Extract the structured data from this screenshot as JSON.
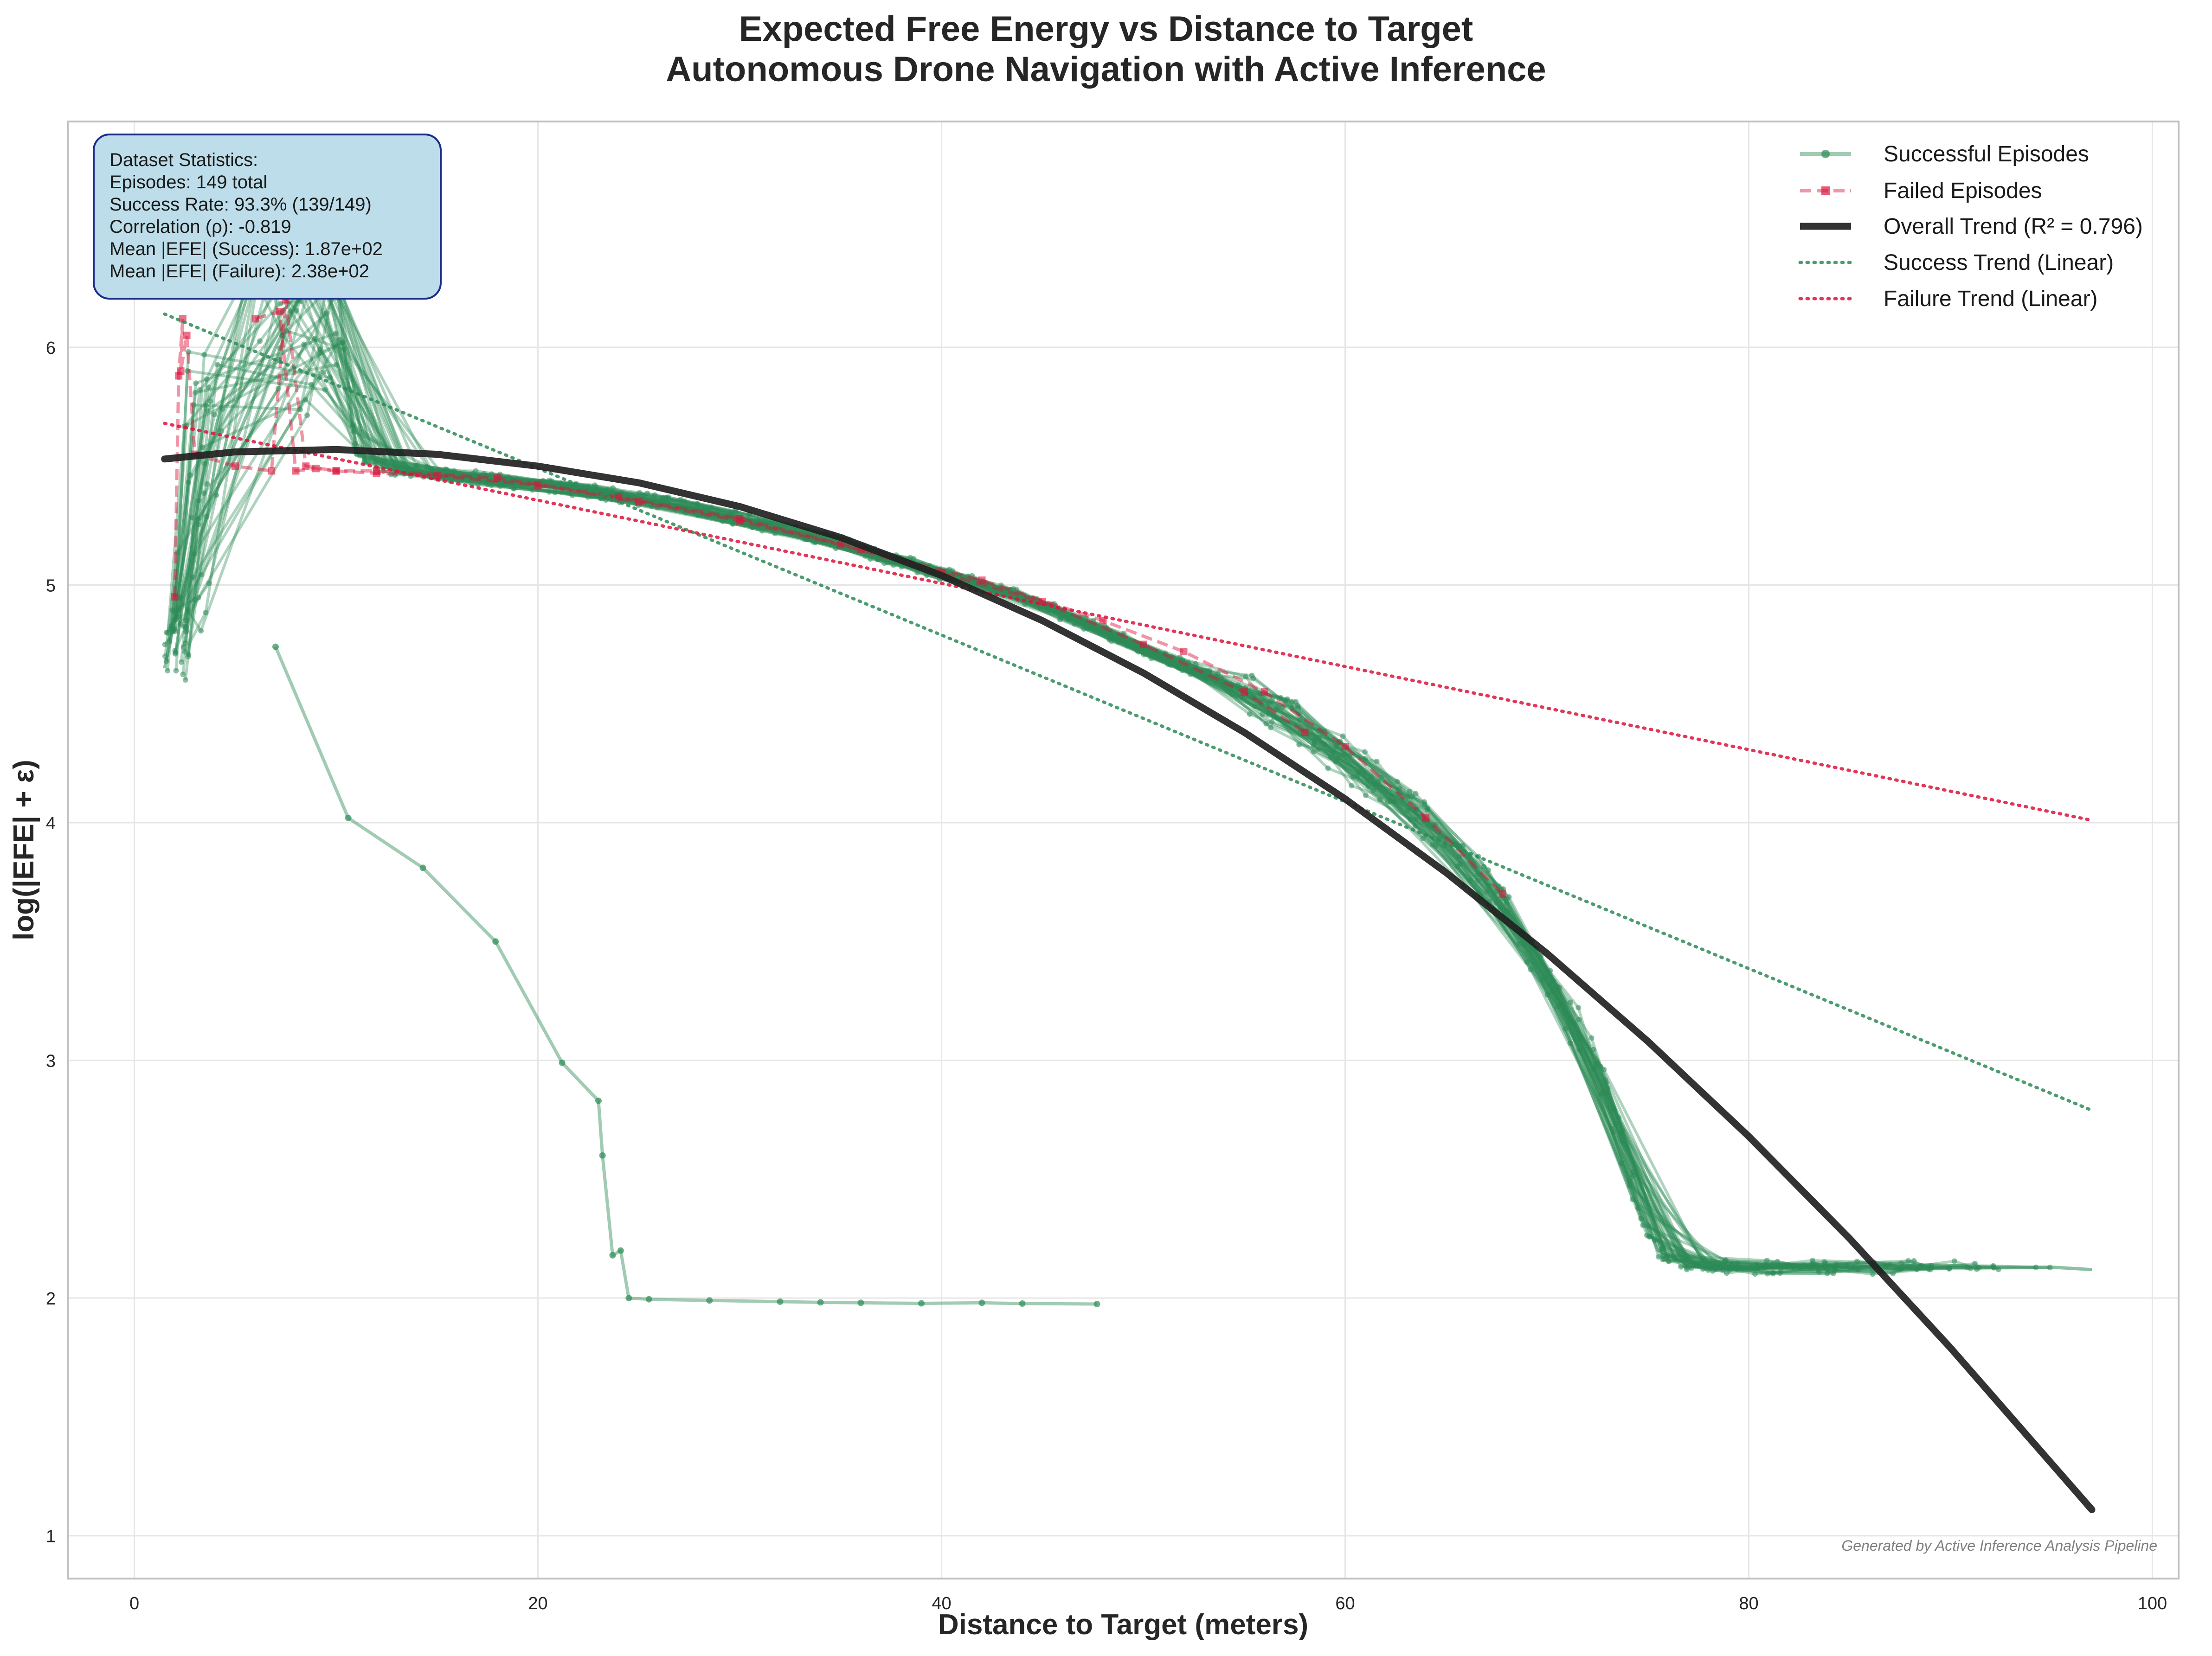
{
  "chart_data": {
    "type": "line",
    "title_line1": "Expected Free Energy vs Distance to Target",
    "title_line2": "Autonomous Drone Navigation with Active Inference",
    "xlabel": "Distance to Target (meters)",
    "ylabel": "log(|EFE| + ε)",
    "xlim": [
      -3.3,
      101.3
    ],
    "ylim": [
      0.82,
      6.95
    ],
    "xticks": [
      0,
      20,
      40,
      60,
      80,
      100
    ],
    "yticks": [
      1,
      2,
      3,
      4,
      5,
      6
    ],
    "grid": true,
    "legend_position": "top-right",
    "legend": [
      {
        "label": "Successful Episodes",
        "color": "#2e8b57"
      },
      {
        "label": "Failed Episodes",
        "color": "#dc143c"
      },
      {
        "label": "Overall Trend (R² = 0.796)",
        "color": "#222222"
      },
      {
        "label": "Success Trend (Linear)",
        "color": "#2e8b57"
      },
      {
        "label": "Failure Trend (Linear)",
        "color": "#dc143c"
      }
    ],
    "stats_box": [
      "Dataset Statistics:",
      "Episodes: 149 total",
      "Success Rate: 93.3% (139/149)",
      "Correlation (ρ): -0.819",
      "Mean |EFE| (Success): 1.87e+02",
      "Mean |EFE| (Failure): 2.38e+02"
    ],
    "footer_note": "Generated by Active Inference Analysis Pipeline",
    "colors": {
      "success": "#2e8b57",
      "failure": "#dc143c",
      "trend": "#222222",
      "stats_box_bg": "#bcdde9",
      "stats_box_border": "#1a2a8c"
    },
    "overall_trend": {
      "x": [
        1.5,
        5,
        10,
        15,
        20,
        25,
        30,
        35,
        40,
        45,
        50,
        55,
        60,
        65,
        70,
        75,
        80,
        85,
        90,
        97
      ],
      "y": [
        5.53,
        5.56,
        5.57,
        5.55,
        5.5,
        5.43,
        5.33,
        5.2,
        5.04,
        4.85,
        4.63,
        4.38,
        4.1,
        3.79,
        3.45,
        3.08,
        2.68,
        2.25,
        1.79,
        1.11
      ]
    },
    "success_trend": {
      "x": [
        1.5,
        97
      ],
      "y": [
        6.14,
        2.79
      ]
    },
    "failure_trend": {
      "x": [
        1.5,
        97
      ],
      "y": [
        5.68,
        4.01
      ]
    },
    "success_main_path": {
      "x": [
        1.5,
        2,
        3,
        5,
        7,
        9,
        10,
        11,
        13,
        15,
        18,
        20,
        23,
        26,
        30,
        34,
        38,
        40,
        43,
        46,
        50,
        53,
        56,
        59,
        61,
        63,
        65,
        67,
        69,
        71,
        72.5,
        73.5,
        74.5,
        75.5,
        77,
        80,
        85,
        90,
        95,
        97
      ],
      "y": [
        4.65,
        4.85,
        5.15,
        5.6,
        6.0,
        6.35,
        6.3,
        5.55,
        5.48,
        5.47,
        5.44,
        5.42,
        5.39,
        5.35,
        5.28,
        5.2,
        5.1,
        5.05,
        4.98,
        4.88,
        4.73,
        4.63,
        4.5,
        4.33,
        4.22,
        4.08,
        3.92,
        3.72,
        3.5,
        3.2,
        3.0,
        2.7,
        2.4,
        2.2,
        2.14,
        2.13,
        2.13,
        2.13,
        2.13,
        2.12
      ]
    },
    "success_outlier_path": {
      "x": [
        7,
        10.6,
        14.3,
        17.9,
        21.2,
        23,
        23.2,
        23.7,
        24.1,
        24.5,
        25.5,
        28.5,
        32,
        34,
        36,
        39,
        42,
        44,
        47.7
      ],
      "y": [
        4.74,
        4.02,
        3.81,
        3.5,
        2.99,
        2.83,
        2.6,
        2.18,
        2.2,
        2.0,
        1.995,
        1.99,
        1.985,
        1.982,
        1.98,
        1.978,
        1.98,
        1.977,
        1.975
      ]
    },
    "failed_paths": [
      {
        "x": [
          2,
          2.2,
          2.4,
          2.3,
          2.6,
          3.0,
          5,
          6.8,
          7.5,
          8.5,
          10,
          12,
          15,
          20,
          25,
          30,
          35,
          40,
          45,
          50,
          55,
          58
        ],
        "y": [
          4.95,
          5.88,
          6.12,
          5.9,
          6.05,
          5.55,
          5.5,
          5.48,
          6.2,
          5.5,
          5.48,
          5.47,
          5.46,
          5.42,
          5.35,
          5.27,
          5.17,
          5.05,
          4.93,
          4.75,
          4.55,
          4.38
        ]
      },
      {
        "x": [
          6,
          7.2,
          8,
          9,
          10,
          12,
          18,
          24,
          30,
          36,
          42,
          48,
          52,
          56,
          60,
          64,
          67.8
        ],
        "y": [
          6.12,
          6.15,
          5.48,
          5.49,
          5.48,
          5.48,
          5.45,
          5.37,
          5.28,
          5.15,
          5.02,
          4.85,
          4.72,
          4.55,
          4.32,
          4.02,
          3.7
        ]
      }
    ]
  }
}
